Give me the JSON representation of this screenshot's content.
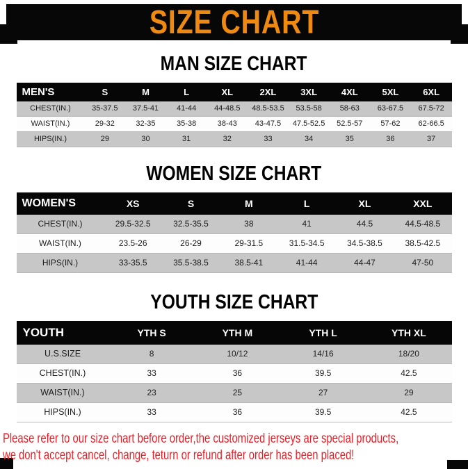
{
  "banner": {
    "title": "SIZE CHART"
  },
  "colors": {
    "banner_bg": "#070707",
    "banner_text": "#EE8912",
    "table_header_bg": "#060606",
    "table_header_text": "#FFFFFF",
    "row_alt_gray": "#C7C7C7",
    "footer_text": "#EE1B24"
  },
  "sections": [
    {
      "id": "men",
      "title": "MAN SIZE CHART",
      "table": {
        "header": [
          "MEN'S",
          "S",
          "M",
          "L",
          "XL",
          "2XL",
          "3XL",
          "4XL",
          "5XL",
          "6XL"
        ],
        "rows": [
          [
            "CHEST(IN.)",
            "35-37.5",
            "37.5-41",
            "41-44",
            "44-48.5",
            "48.5-53.5",
            "53.5-58",
            "58-63",
            "63-67.5",
            "67.5-72"
          ],
          [
            "WAIST(IN.)",
            "29-32",
            "32-35",
            "35-38",
            "38-43",
            "43-47.5",
            "47.5-52.5",
            "52.5-57",
            "57-62",
            "62-66.5"
          ],
          [
            "HIPS(IN.)",
            "29",
            "30",
            "31",
            "32",
            "33",
            "34",
            "35",
            "36",
            "37"
          ]
        ]
      }
    },
    {
      "id": "women",
      "title": "WOMEN SIZE CHART",
      "table": {
        "header": [
          "WOMEN'S",
          "XS",
          "S",
          "M",
          "L",
          "XL",
          "XXL"
        ],
        "rows": [
          [
            "CHEST(IN.)",
            "29.5-32.5",
            "32.5-35.5",
            "38",
            "41",
            "44.5",
            "44.5-48.5"
          ],
          [
            "WAIST(IN.)",
            "23.5-26",
            "26-29",
            "29-31.5",
            "31.5-34.5",
            "34.5-38.5",
            "38.5-42.5"
          ],
          [
            "HIPS(IN.)",
            "33-35.5",
            "35.5-38.5",
            "38.5-41",
            "41-44",
            "44-47",
            "47-50"
          ]
        ]
      }
    },
    {
      "id": "youth",
      "title": "YOUTH SIZE CHART",
      "table": {
        "header": [
          "YOUTH",
          "YTH S",
          "YTH M",
          "YTH L",
          "YTH XL"
        ],
        "rows": [
          [
            "U.S.SIZE",
            "8",
            "10/12",
            "14/16",
            "18/20"
          ],
          [
            "CHEST(IN.)",
            "33",
            "36",
            "39.5",
            "42.5"
          ],
          [
            "WAIST(IN.)",
            "23",
            "25",
            "27",
            "29"
          ],
          [
            "HIPS(IN.)",
            "33",
            "36",
            "39.5",
            "42.5"
          ]
        ]
      }
    }
  ],
  "footer": {
    "lines": [
      "Please refer to our size chart before order,the customized jerseys are special products,",
      "we don't accept cancel, change, teturn or refund after order has been placed!"
    ]
  }
}
